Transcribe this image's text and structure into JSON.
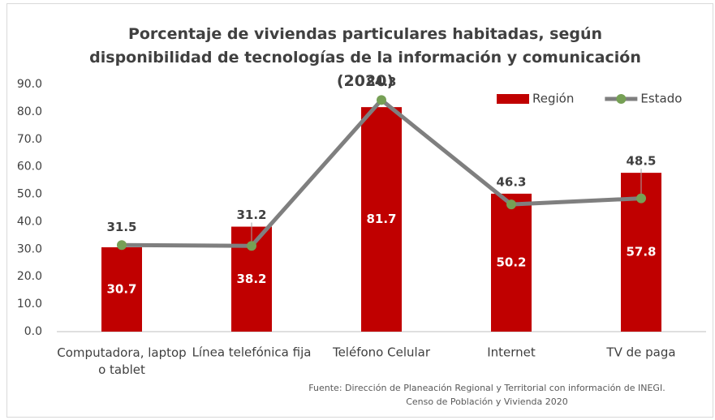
{
  "chart_data": {
    "type": "bar_line",
    "title": "Porcentaje de viviendas particulares habitadas, según disponibilidad de tecnologías de la información y comunicación (2020)",
    "categories": [
      "Computadora, laptop o tablet",
      "Línea telefónica fija",
      "Teléfono Celular",
      "Internet",
      "TV de paga"
    ],
    "series": [
      {
        "name": "Región",
        "type": "bar",
        "color": "#c00000",
        "values": [
          30.7,
          38.2,
          81.7,
          50.2,
          57.8
        ]
      },
      {
        "name": "Estado",
        "type": "line",
        "color": "#7f7f7f",
        "marker_color": "#76a055",
        "values": [
          31.5,
          31.2,
          84.3,
          46.3,
          48.5
        ]
      }
    ],
    "ylim": [
      0,
      90
    ],
    "yticks": [
      {
        "value": 0,
        "label": "0.0"
      },
      {
        "value": 10,
        "label": "10.0"
      },
      {
        "value": 20,
        "label": "20.0"
      },
      {
        "value": 30,
        "label": "30.0"
      },
      {
        "value": 40,
        "label": "40.0"
      },
      {
        "value": 50,
        "label": "50.0"
      },
      {
        "value": 60,
        "label": "60.0"
      },
      {
        "value": 70,
        "label": "70.0"
      },
      {
        "value": 80,
        "label": "80.0"
      },
      {
        "value": 90,
        "label": "90.0"
      }
    ],
    "grid": false,
    "legend": "top-right",
    "source": "Fuente: Dirección de Planeación Regional y Territorial con información de INEGI. Censo de Población y Vivienda 2020"
  }
}
